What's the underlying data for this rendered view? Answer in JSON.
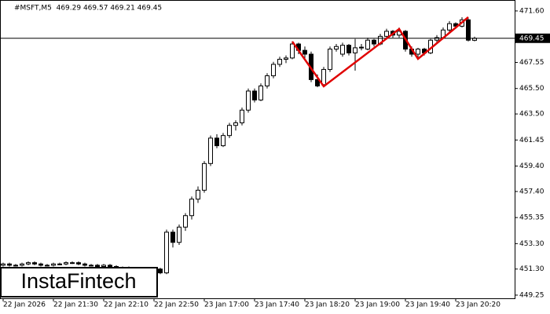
{
  "chart_data": {
    "type": "candlestick",
    "title": "#MSFT,M5  469.29 469.57 469.21 469.45",
    "watermark": "InstaFintech",
    "categories": [
      "22 Jan 2026",
      null,
      null,
      null,
      null,
      null,
      null,
      null,
      "22 Jan 21:30",
      null,
      null,
      null,
      null,
      null,
      null,
      null,
      "22 Jan 22:10",
      null,
      null,
      null,
      null,
      null,
      null,
      null,
      "22 Jan 22:50",
      null,
      null,
      null,
      null,
      null,
      null,
      null,
      "23 Jan 17:00",
      null,
      null,
      null,
      null,
      null,
      null,
      null,
      "23 Jan 17:40",
      null,
      null,
      null,
      null,
      null,
      null,
      null,
      "23 Jan 18:20",
      null,
      null,
      null,
      null,
      null,
      null,
      null,
      "23 Jan 19:00",
      null,
      null,
      null,
      null,
      null,
      null,
      null,
      "23 Jan 19:40",
      null,
      null,
      null,
      null,
      null,
      null,
      null,
      "23 Jan 20:20",
      null,
      null,
      null
    ],
    "open": [
      451.6,
      451.7,
      451.6,
      451.6,
      451.7,
      451.8,
      451.7,
      451.6,
      451.6,
      451.7,
      451.7,
      451.8,
      451.8,
      451.7,
      451.6,
      451.6,
      451.5,
      451.6,
      451.5,
      451.4,
      451.4,
      451.3,
      451.3,
      451.2,
      451.2,
      451.3,
      451.0,
      454.2,
      453.4,
      454.6,
      455.5,
      456.8,
      457.5,
      459.6,
      461.6,
      461.0,
      461.8,
      462.6,
      462.8,
      463.8,
      465.3,
      464.6,
      465.7,
      466.5,
      467.4,
      467.8,
      467.9,
      469.0,
      468.5,
      468.2,
      466.2,
      465.8,
      467.0,
      468.6,
      468.2,
      468.9,
      468.3,
      468.7,
      468.6,
      469.3,
      469.0,
      469.6,
      470.0,
      469.7,
      470.0,
      468.6,
      468.2,
      468.6,
      468.3,
      469.3,
      469.5,
      470.1,
      470.6,
      470.4,
      470.9,
      469.29
    ],
    "high": [
      451.8,
      451.8,
      451.7,
      451.8,
      451.9,
      451.9,
      451.8,
      451.7,
      451.8,
      451.8,
      451.9,
      451.9,
      451.9,
      451.8,
      451.7,
      451.7,
      451.7,
      451.7,
      451.6,
      451.5,
      451.5,
      451.4,
      451.4,
      451.3,
      451.4,
      451.4,
      454.4,
      454.4,
      454.8,
      455.7,
      457.0,
      457.8,
      459.8,
      461.8,
      461.9,
      462.0,
      462.8,
      463.0,
      464.0,
      465.5,
      465.5,
      465.9,
      466.7,
      467.6,
      468.0,
      468.1,
      469.2,
      469.1,
      468.8,
      468.4,
      466.6,
      467.2,
      468.8,
      469.0,
      469.1,
      469.0,
      469.4,
      469.0,
      469.5,
      469.4,
      469.8,
      470.2,
      470.1,
      470.3,
      470.1,
      468.8,
      468.7,
      468.7,
      469.4,
      469.7,
      470.3,
      470.8,
      470.7,
      471.1,
      471.0,
      469.57
    ],
    "low": [
      451.5,
      451.5,
      451.5,
      451.5,
      451.6,
      451.6,
      451.5,
      451.5,
      451.5,
      451.6,
      451.6,
      451.7,
      451.6,
      451.5,
      451.5,
      451.4,
      451.4,
      451.4,
      451.3,
      451.3,
      451.2,
      451.2,
      451.1,
      451.1,
      451.1,
      450.9,
      450.9,
      453.0,
      453.2,
      454.3,
      455.2,
      456.5,
      457.3,
      459.4,
      460.8,
      460.9,
      461.6,
      462.2,
      462.6,
      463.6,
      464.4,
      464.5,
      465.5,
      466.3,
      467.2,
      467.5,
      467.8,
      468.2,
      467.9,
      466.0,
      465.6,
      465.6,
      466.8,
      468.4,
      468.0,
      468.1,
      466.9,
      468.5,
      468.5,
      468.8,
      468.9,
      469.4,
      469.5,
      469.5,
      468.4,
      468.0,
      467.8,
      468.1,
      468.2,
      469.1,
      469.4,
      469.9,
      470.2,
      470.3,
      469.2,
      469.21
    ],
    "close": [
      451.7,
      451.6,
      451.6,
      451.7,
      451.8,
      451.7,
      451.6,
      451.6,
      451.7,
      451.7,
      451.8,
      451.8,
      451.7,
      451.6,
      451.6,
      451.5,
      451.6,
      451.5,
      451.4,
      451.4,
      451.3,
      451.3,
      451.2,
      451.2,
      451.3,
      451.0,
      454.2,
      453.4,
      454.6,
      455.5,
      456.8,
      457.5,
      459.6,
      461.6,
      461.0,
      461.8,
      462.6,
      462.8,
      463.8,
      465.3,
      464.6,
      465.7,
      466.5,
      467.4,
      467.8,
      467.9,
      469.0,
      468.5,
      468.2,
      466.2,
      465.7,
      467.0,
      468.6,
      468.8,
      468.9,
      468.3,
      468.7,
      468.75,
      469.3,
      469.0,
      469.6,
      470.0,
      469.7,
      470.0,
      468.6,
      468.2,
      468.6,
      468.3,
      469.3,
      469.5,
      470.1,
      470.6,
      470.4,
      470.9,
      469.3,
      469.45
    ],
    "current_price": 469.45,
    "pattern": {
      "color": "#e00000",
      "x": [
        46,
        51,
        63,
        66,
        74
      ],
      "values": [
        469.19,
        465.67,
        470.18,
        467.83,
        471.11
      ]
    },
    "ylim": [
      449.0,
      472.46
    ],
    "yticks": [
      449.25,
      {
        "value": 451.3,
        "label": "451.30"
      },
      {
        "value": 453.3,
        "label": "453.30"
      },
      455.35,
      {
        "value": 457.4,
        "label": "457.40"
      },
      {
        "value": 459.4,
        "label": "459.40"
      },
      461.45,
      {
        "value": 463.5,
        "label": "463.50"
      },
      {
        "value": 465.5,
        "label": "465.50"
      },
      467.55,
      {
        "value": 471.6,
        "label": "471.60"
      }
    ]
  }
}
